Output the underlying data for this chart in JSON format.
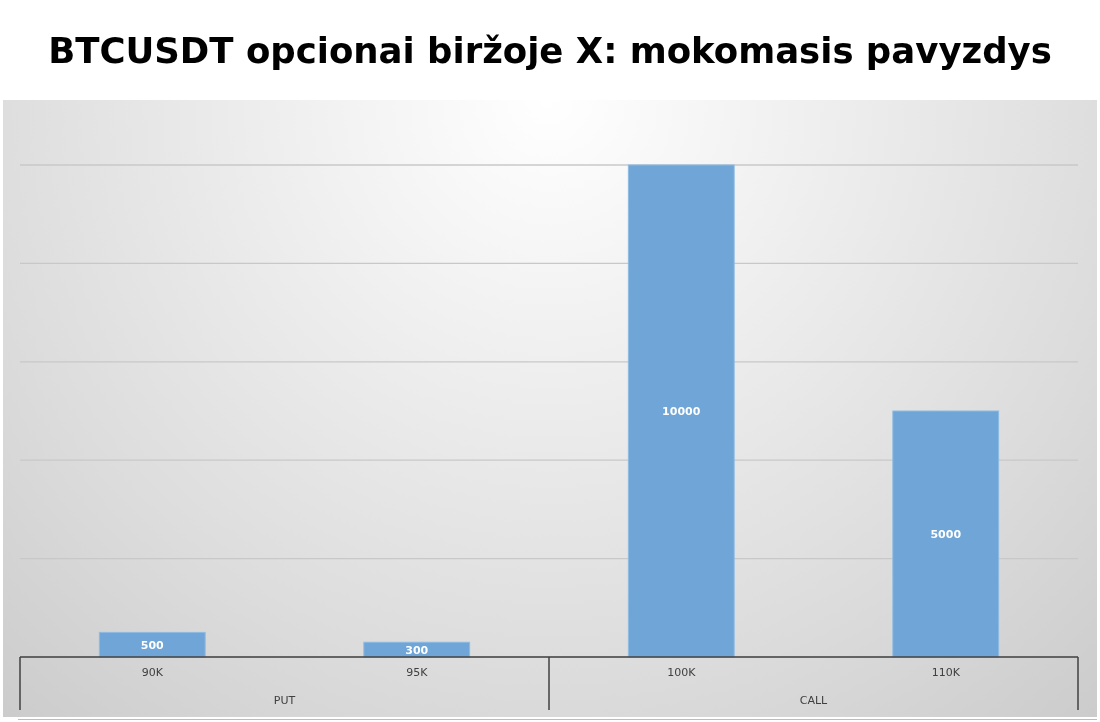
{
  "chart_data": {
    "type": "bar",
    "title": "BTCUSDT opcionai biržoje X: mokomasis pavyzdys",
    "categories": [
      "90K",
      "95K",
      "100K",
      "110K"
    ],
    "values": [
      500,
      300,
      10000,
      5000
    ],
    "color": "#6fa5d7",
    "ylim": [
      0,
      10000
    ],
    "yticks": [
      {
        "value": 0,
        "label": null
      },
      {
        "value": 2000,
        "label": null
      },
      {
        "value": 4000,
        "label": null
      },
      {
        "value": 6000,
        "label": null
      },
      {
        "value": 8000,
        "label": null
      },
      {
        "value": 10000,
        "label": null
      }
    ],
    "grid": "y",
    "tick_labels": "x",
    "data_labels": true,
    "annotations": [
      "PUT",
      "CALL"
    ]
  }
}
